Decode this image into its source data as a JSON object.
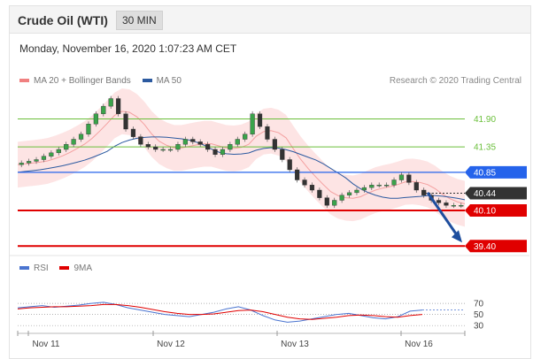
{
  "header": {
    "title": "Crude Oil (WTI)",
    "timeframe": "30 MIN"
  },
  "date": "Monday, November 16, 2020 1:07:23 AM CET",
  "legend_main": [
    {
      "label": "MA 20 + Bollinger Bands",
      "color": "#f08080"
    },
    {
      "label": "MA 50",
      "color": "#2c5aa0"
    }
  ],
  "credit": "Research © 2020 Trading Central",
  "legend_rsi": [
    {
      "label": "RSI",
      "color": "#4a74d0"
    },
    {
      "label": "9MA",
      "color": "#e00000"
    }
  ],
  "chart_data": {
    "type": "line",
    "instrument": "Crude Oil (WTI)",
    "interval": "30 MIN",
    "x_ticks": [
      "Nov 11",
      "Nov 12",
      "Nov 13",
      "Nov 16"
    ],
    "ylim": [
      39.3,
      42.5
    ],
    "levels": [
      {
        "value": 41.9,
        "label": "41.90",
        "color": "#6abf3a",
        "style": "thin",
        "tag": "text"
      },
      {
        "value": 41.35,
        "label": "41.35",
        "color": "#6abf3a",
        "style": "thin",
        "tag": "text"
      },
      {
        "value": 40.85,
        "label": "40.85",
        "color": "#2563eb",
        "style": "medium",
        "tag": "box"
      },
      {
        "value": 40.44,
        "label": "40.44",
        "color": "#333333",
        "style": "dotted",
        "tag": "box"
      },
      {
        "value": 40.1,
        "label": "40.10",
        "color": "#e00000",
        "style": "thick",
        "tag": "box"
      },
      {
        "value": 39.4,
        "label": "39.40",
        "color": "#e00000",
        "style": "thick",
        "tag": "box"
      }
    ],
    "price_path": [
      [
        0,
        41.0
      ],
      [
        3,
        41.1
      ],
      [
        6,
        41.3
      ],
      [
        9,
        41.6
      ],
      [
        11,
        42.0
      ],
      [
        13,
        42.3
      ],
      [
        15,
        41.7
      ],
      [
        17,
        41.4
      ],
      [
        19,
        41.3
      ],
      [
        21,
        41.3
      ],
      [
        23,
        41.5
      ],
      [
        25,
        41.4
      ],
      [
        27,
        41.2
      ],
      [
        29,
        41.4
      ],
      [
        31,
        41.6
      ],
      [
        32,
        42.0
      ],
      [
        34,
        41.5
      ],
      [
        36,
        41.1
      ],
      [
        38,
        40.7
      ],
      [
        40,
        40.5
      ],
      [
        42,
        40.2
      ],
      [
        44,
        40.4
      ],
      [
        46,
        40.5
      ],
      [
        48,
        40.6
      ],
      [
        50,
        40.6
      ],
      [
        52,
        40.8
      ],
      [
        54,
        40.5
      ],
      [
        56,
        40.3
      ],
      [
        58,
        40.2
      ],
      [
        60,
        40.2
      ]
    ],
    "forecast": {
      "from": 40.45,
      "to": 39.4
    },
    "rsi": {
      "levels": [
        70,
        50,
        30
      ],
      "ylim": [
        0,
        100
      ],
      "series": [
        {
          "name": "RSI",
          "values": [
            62,
            64,
            66,
            63,
            65,
            67,
            70,
            72,
            68,
            62,
            58,
            54,
            50,
            48,
            46,
            50,
            54,
            60,
            64,
            58,
            48,
            40,
            36,
            38,
            42,
            46,
            50,
            52,
            48,
            44,
            42,
            46,
            56,
            58
          ]
        },
        {
          "name": "9MA",
          "values": [
            60,
            62,
            63,
            64,
            64,
            65,
            66,
            68,
            68,
            66,
            63,
            59,
            55,
            52,
            50,
            50,
            51,
            54,
            57,
            58,
            55,
            50,
            45,
            42,
            41,
            43,
            45,
            48,
            49,
            48,
            46,
            45,
            48,
            50
          ]
        }
      ]
    }
  }
}
